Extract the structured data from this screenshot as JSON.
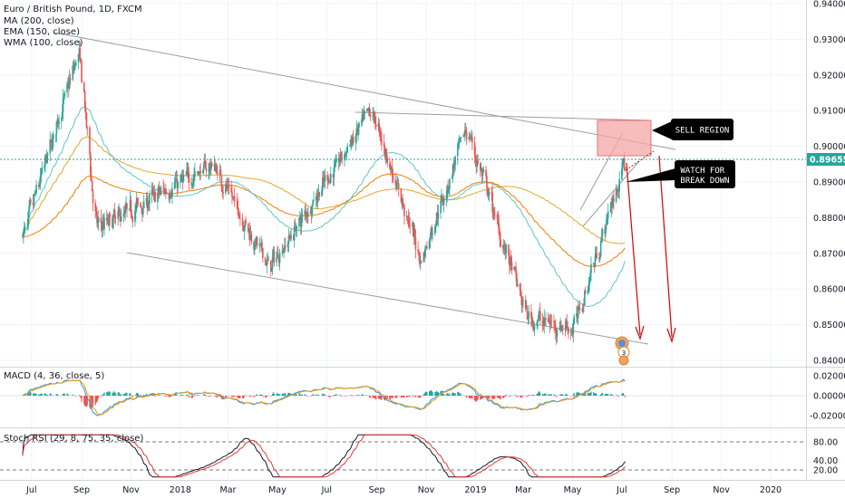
{
  "chart_data": [
    {
      "type": "candlestick",
      "title": "Euro / British Pound, 1D, FXCM",
      "indicators": [
        "MA (200, close)",
        "EMA (150, close)",
        "WMA (100, close)"
      ],
      "x_ticks": [
        "Jul",
        "Sep",
        "Nov",
        "2018",
        "Mar",
        "May",
        "Jul",
        "Sep",
        "Nov",
        "2019",
        "Mar",
        "May",
        "Jul",
        "Sep",
        "Nov",
        "2020"
      ],
      "y_ticks": [
        "0.94000",
        "0.93000",
        "0.92000",
        "0.91000",
        "0.90000",
        "0.89000",
        "0.88000",
        "0.87000",
        "0.86000",
        "0.85000",
        "0.84000"
      ],
      "ylim": [
        0.84,
        0.94
      ],
      "last_price": "0.89655",
      "annotations": [
        "SELL REGION",
        "WATCH FOR BREAK DOWN"
      ],
      "event_badge": "3",
      "colors": {
        "up": "#26a69a",
        "down": "#ef5350",
        "ma200": "#e3a72f",
        "ema150": "#f57c00",
        "wma100": "#5ec7c7",
        "trendline": "#9e9e9e",
        "arrow": "#d50000",
        "sell_region": "#f4a7a7"
      },
      "key_points": [
        {
          "date": "2017-06-20",
          "value": 0.875
        },
        {
          "date": "2017-08-28",
          "value": 0.927
        },
        {
          "date": "2017-09-18",
          "value": 0.877
        },
        {
          "date": "2018-02-10",
          "value": 0.895
        },
        {
          "date": "2018-04-20",
          "value": 0.866
        },
        {
          "date": "2018-08-25",
          "value": 0.91
        },
        {
          "date": "2018-10-25",
          "value": 0.868
        },
        {
          "date": "2018-12-20",
          "value": 0.905
        },
        {
          "date": "2019-03-05",
          "value": 0.852
        },
        {
          "date": "2019-05-01",
          "value": 0.849
        },
        {
          "date": "2019-07-05",
          "value": 0.8965
        }
      ]
    },
    {
      "type": "line",
      "title": "MACD (4, 36, close, 5)",
      "y_ticks": [
        "0.02000",
        "0.00000",
        "-0.02000"
      ],
      "ylim": [
        -0.027,
        0.027
      ]
    },
    {
      "type": "line",
      "title": "Stoch RSI (29, 8, 75, 35, close)",
      "y_ticks": [
        "80.00",
        "40.00",
        "20.00"
      ],
      "ylim": [
        0,
        100
      ]
    }
  ]
}
